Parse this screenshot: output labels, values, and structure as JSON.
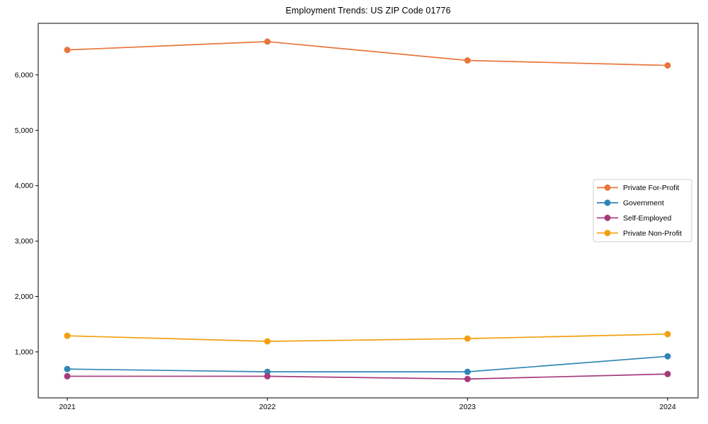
{
  "title": "Employment Trends: US ZIP Code 01776",
  "chart_data": {
    "type": "line",
    "title": "Employment Trends: US ZIP Code 01776",
    "x_labels": [
      "2021",
      "2022",
      "2023",
      "2024"
    ],
    "ytick_labels": [
      "1,000",
      "2,000",
      "3,000",
      "4,000",
      "5,000",
      "6,000"
    ],
    "yticks": [
      1000,
      2000,
      3000,
      4000,
      5000,
      6000
    ],
    "ylim": [
      170,
      6930
    ],
    "grid": false,
    "legend_position": "center right",
    "axis_color": "#000000",
    "tick_label_color": "#000000",
    "legend_border_color": "#cccccc",
    "series": [
      {
        "name": "Private For-Profit",
        "color": "#e8763c",
        "values": [
          6450,
          6600,
          6260,
          6170
        ]
      },
      {
        "name": "Government",
        "color": "#3186b6",
        "values": [
          690,
          640,
          640,
          920
        ]
      },
      {
        "name": "Self-Employed",
        "color": "#a53b7d",
        "values": [
          560,
          560,
          510,
          600
        ]
      },
      {
        "name": "Private Non-Profit",
        "color": "#f2a011",
        "values": [
          1290,
          1190,
          1240,
          1320
        ]
      }
    ]
  }
}
